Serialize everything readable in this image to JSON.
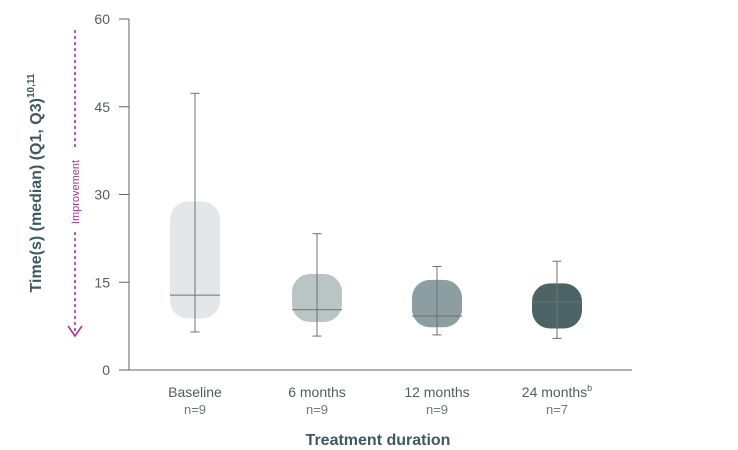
{
  "chart_data": {
    "type": "box",
    "title": "",
    "xlabel": "Treatment duration",
    "ylabel": "Time(s) (median) (Q1, Q3)",
    "ylabel_superscript": "10,11",
    "ylim": [
      0,
      60
    ],
    "yticks": [
      0,
      15,
      30,
      45,
      60
    ],
    "annotation": "Improvement",
    "grid": false,
    "series": [
      {
        "category": "Baseline",
        "superscript": "",
        "n": "n=9",
        "min": 6.5,
        "q1": 8.8,
        "median": 12.8,
        "q3": 28.8,
        "max": 47.3,
        "color": "#e4e6e9"
      },
      {
        "category": "6 months",
        "superscript": "",
        "n": "n=9",
        "min": 5.8,
        "q1": 8.2,
        "median": 10.3,
        "q3": 16.4,
        "max": 23.3,
        "color": "#b9c5c5"
      },
      {
        "category": "12 months",
        "superscript": "",
        "n": "n=9",
        "min": 6.0,
        "q1": 7.3,
        "median": 9.2,
        "q3": 15.4,
        "max": 17.7,
        "color": "#8c9ea1"
      },
      {
        "category": "24 months",
        "superscript": "b",
        "n": "n=7",
        "min": 5.4,
        "q1": 7.1,
        "median": 11.6,
        "q3": 14.8,
        "max": 18.6,
        "color": "#4d6467"
      }
    ]
  }
}
